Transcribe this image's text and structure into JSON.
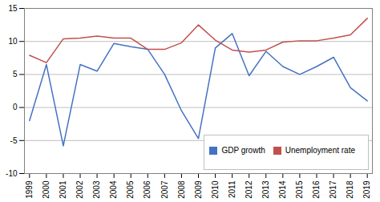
{
  "chart_data": {
    "type": "line",
    "x": [
      1999,
      2000,
      2001,
      2002,
      2003,
      2004,
      2005,
      2006,
      2007,
      2008,
      2009,
      2010,
      2011,
      2012,
      2013,
      2014,
      2015,
      2016,
      2017,
      2018,
      2019
    ],
    "series": [
      {
        "name": "GDP growth",
        "color": "#4472c4",
        "values": [
          -2,
          6.5,
          -5.8,
          6.5,
          5.5,
          9.7,
          9.2,
          8.8,
          5.0,
          -0.5,
          -4.7,
          9.0,
          11.2,
          4.8,
          8.5,
          6.2,
          5.0,
          6.2,
          7.6,
          3.0,
          1.0
        ]
      },
      {
        "name": "Unemployment rate",
        "color": "#c0504d",
        "values": [
          7.9,
          6.8,
          10.4,
          10.5,
          10.8,
          10.5,
          10.5,
          8.8,
          8.8,
          9.8,
          12.5,
          10.2,
          8.7,
          8.4,
          8.7,
          9.9,
          10.1,
          10.1,
          10.5,
          11.0,
          13.5
        ]
      }
    ],
    "xlim": [
      1998.7,
      2019.3
    ],
    "xticks": [
      1999,
      2000,
      2001,
      2002,
      2003,
      2004,
      2005,
      2006,
      2007,
      2008,
      2009,
      2010,
      2011,
      2012,
      2013,
      2014,
      2015,
      2016,
      2017,
      2018,
      2019
    ],
    "ylim": [
      -10,
      15
    ],
    "yticks": [
      -10,
      -5,
      0,
      5,
      10,
      15
    ],
    "grid": true,
    "legend": "lower right"
  }
}
